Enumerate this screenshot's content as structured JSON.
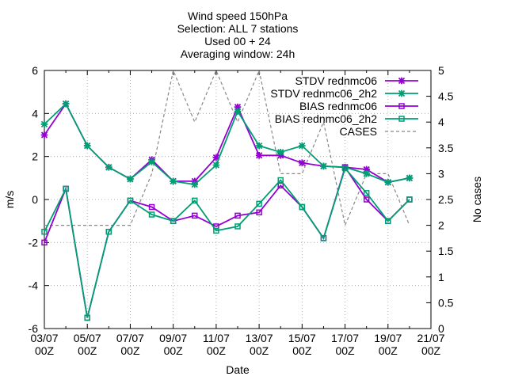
{
  "chart_data": {
    "type": "line",
    "title_lines": [
      "Wind speed 150hPa",
      "Selection: ALL      7 stations",
      "Used 00 + 24",
      "Averaging window: 24h"
    ],
    "xlabel": "Date",
    "ylabel": "m/s",
    "y2label": "No cases",
    "x_tick_labels": [
      [
        "03/07",
        "00Z"
      ],
      [
        "05/07",
        "00Z"
      ],
      [
        "07/07",
        "00Z"
      ],
      [
        "09/07",
        "00Z"
      ],
      [
        "11/07",
        "00Z"
      ],
      [
        "13/07",
        "00Z"
      ],
      [
        "15/07",
        "00Z"
      ],
      [
        "17/07",
        "00Z"
      ],
      [
        "19/07",
        "00Z"
      ],
      [
        "21/07",
        "00Z"
      ]
    ],
    "x": [
      "03/07",
      "04/07",
      "05/07",
      "06/07",
      "07/07",
      "08/07",
      "09/07",
      "10/07",
      "11/07",
      "12/07",
      "13/07",
      "14/07",
      "15/07",
      "16/07",
      "17/07",
      "18/07",
      "19/07",
      "20/07"
    ],
    "xlim": [
      "03/07",
      "21/07"
    ],
    "ylim": [
      -6,
      6
    ],
    "yticks": [
      -6,
      -4,
      -2,
      0,
      2,
      4,
      6
    ],
    "y2lim": [
      0,
      5
    ],
    "y2ticks": [
      0,
      0.5,
      1,
      1.5,
      2,
      2.5,
      3,
      3.5,
      4,
      4.5,
      5
    ],
    "legend_position": "top-right",
    "series": [
      {
        "name": "STDV rednmc06",
        "color": "#9400d3",
        "marker": "star",
        "axis": "y",
        "dash": "solid",
        "values": [
          3.0,
          4.45,
          2.5,
          1.5,
          0.95,
          1.85,
          0.85,
          0.85,
          1.95,
          4.3,
          2.05,
          2.05,
          1.7,
          1.55,
          1.5,
          1.4,
          0.8,
          1.0
        ]
      },
      {
        "name": "STDV rednmc06_2h2",
        "color": "#009e73",
        "marker": "star",
        "axis": "y",
        "dash": "solid",
        "values": [
          3.5,
          4.45,
          2.5,
          1.5,
          0.95,
          1.75,
          0.85,
          0.7,
          1.6,
          4.1,
          2.5,
          2.2,
          2.5,
          1.55,
          1.5,
          1.2,
          0.8,
          1.0
        ]
      },
      {
        "name": "BIAS rednmc06",
        "color": "#9400d3",
        "marker": "square",
        "axis": "y",
        "dash": "solid",
        "values": [
          -2.0,
          0.5,
          -5.5,
          -1.5,
          -0.05,
          -0.35,
          -1.0,
          -0.75,
          -1.25,
          -0.75,
          -0.6,
          0.65,
          -0.35,
          -1.8,
          1.5,
          0.0,
          -1.0,
          0.0
        ]
      },
      {
        "name": "BIAS rednmc06_2h2",
        "color": "#009e73",
        "marker": "square",
        "axis": "y",
        "dash": "solid",
        "values": [
          -1.5,
          0.5,
          -5.5,
          -1.5,
          -0.05,
          -0.7,
          -1.0,
          -0.05,
          -1.45,
          -1.25,
          -0.2,
          0.9,
          -0.35,
          -1.8,
          1.45,
          0.3,
          -1.0,
          0.0
        ]
      },
      {
        "name": "CASES",
        "color": "#888888",
        "marker": "none",
        "axis": "y2",
        "dash": "dashed",
        "values": [
          2,
          2,
          2,
          2,
          2,
          3,
          5,
          4,
          5,
          4,
          5,
          3,
          3,
          4,
          2,
          3,
          3,
          2
        ]
      }
    ]
  }
}
